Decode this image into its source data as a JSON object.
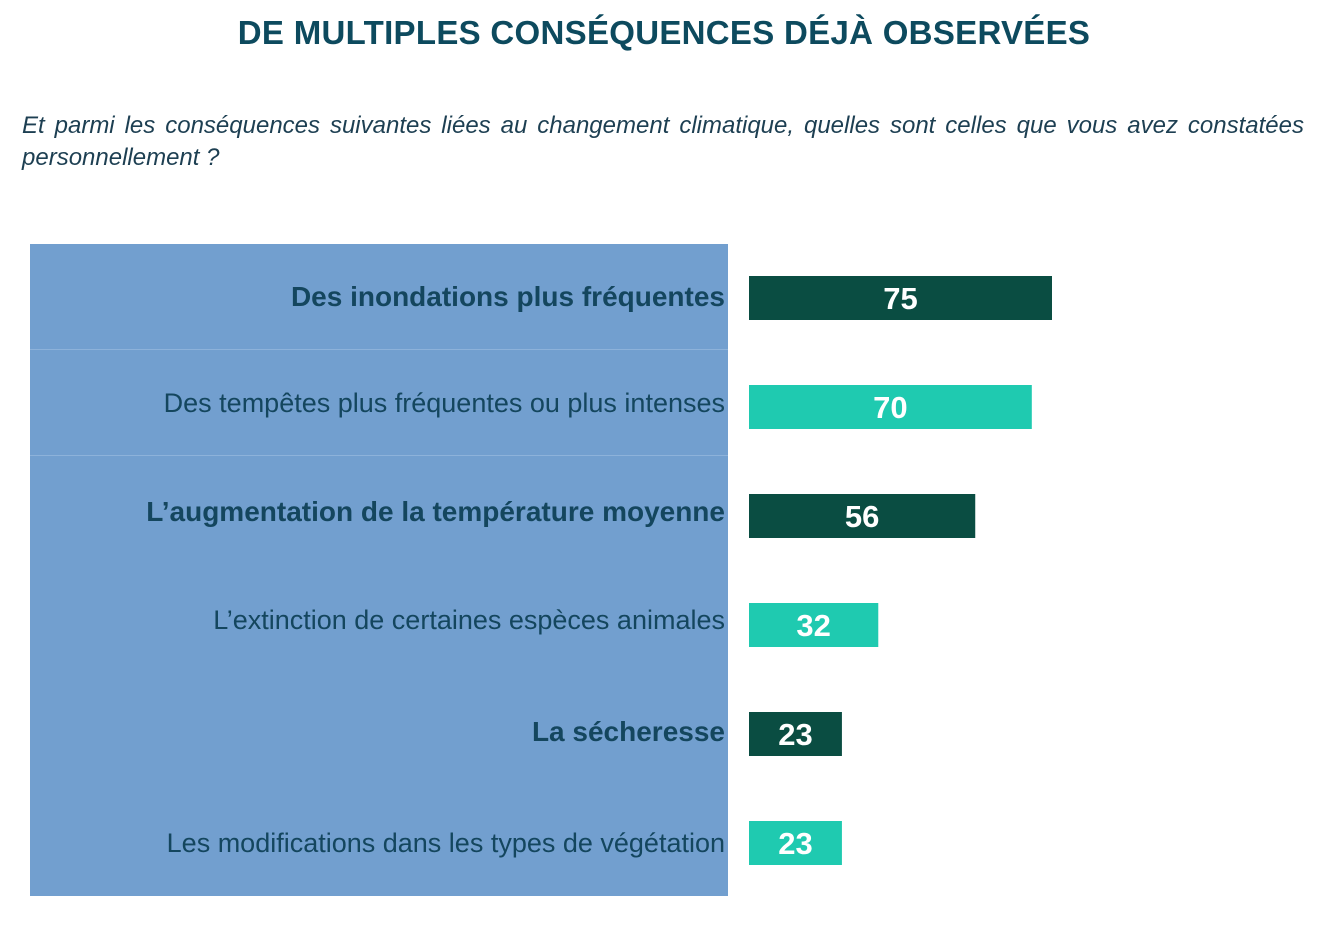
{
  "header": {
    "title": "DE MULTIPLES CONSÉQUENCES DÉJÀ OBSERVÉES",
    "question": "Et parmi les conséquences suivantes liées au changement climatique, quelles sont celles que vous avez constatées personnellement ?"
  },
  "colors": {
    "panel": "#729fcf",
    "dark_bar": "#0a4d42",
    "light_bar": "#1fcab0",
    "label_text": "#14465e",
    "title_text": "#0d4a5e"
  },
  "chart_data": {
    "type": "bar",
    "orientation": "horizontal",
    "categories": [
      "Des inondations plus fréquentes",
      "Des tempêtes plus fréquentes ou plus intenses",
      "L’augmentation de la température moyenne",
      "L’extinction de certaines espèces animales",
      "La sécheresse",
      "Les modifications dans les types de végétation"
    ],
    "values": [
      75,
      70,
      56,
      32,
      23,
      23
    ],
    "bar_colors": [
      "#0a4d42",
      "#1fcab0",
      "#0a4d42",
      "#1fcab0",
      "#0a4d42",
      "#1fcab0"
    ],
    "bold_labels": [
      true,
      false,
      true,
      false,
      true,
      false
    ],
    "data_labels": [
      "75",
      "70",
      "56",
      "32",
      "23",
      "23"
    ],
    "grid": false,
    "legend": "none"
  }
}
